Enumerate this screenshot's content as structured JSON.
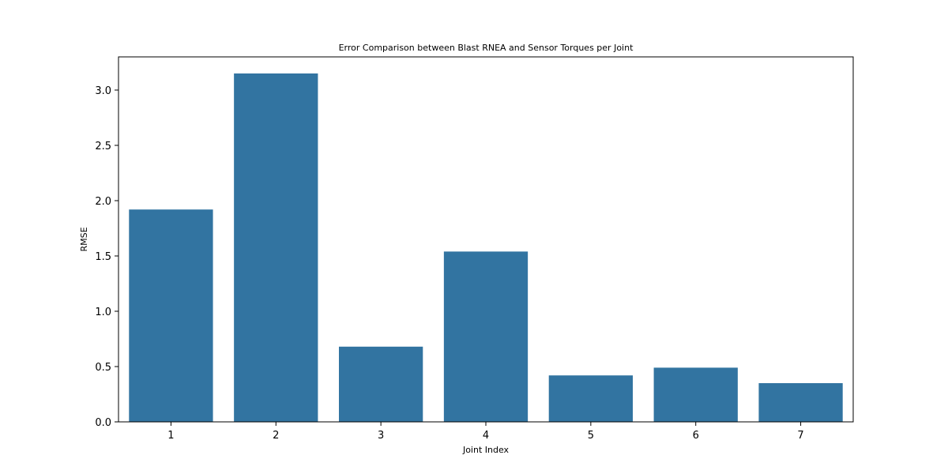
{
  "chart_data": {
    "type": "bar",
    "title": "Error Comparison between Blast RNEA and Sensor Torques per Joint",
    "xlabel": "Joint Index",
    "ylabel": "RMSE",
    "categories": [
      "1",
      "2",
      "3",
      "4",
      "5",
      "6",
      "7"
    ],
    "values": [
      1.92,
      3.15,
      0.68,
      1.54,
      0.42,
      0.49,
      0.35
    ],
    "ylim": [
      0,
      3.3
    ],
    "yticks": [
      0.0,
      0.5,
      1.0,
      1.5,
      2.0,
      2.5,
      3.0
    ],
    "ytick_labels": [
      "0.0",
      "0.5",
      "1.0",
      "1.5",
      "2.0",
      "2.5",
      "3.0"
    ],
    "grid": false,
    "bar_color": "#3274a1"
  }
}
